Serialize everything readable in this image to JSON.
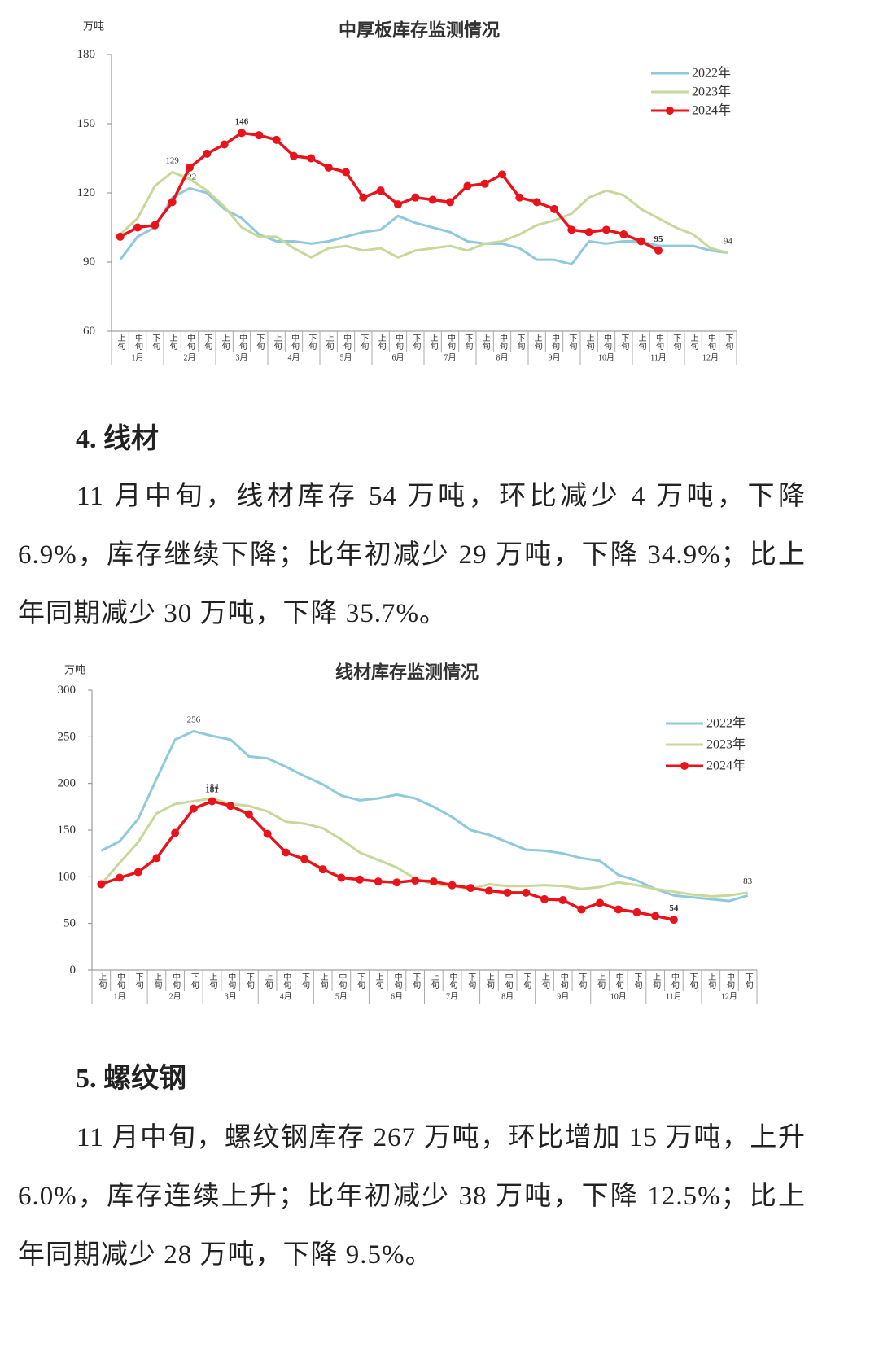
{
  "chart_data": [
    {
      "type": "line",
      "title": "中厚板库存监测情况",
      "y_unit": "万吨",
      "ylim": [
        60,
        180
      ],
      "yticks": [
        60,
        90,
        120,
        150,
        180
      ],
      "categories": [
        "上旬",
        "中旬",
        "下旬",
        "上旬",
        "中旬",
        "下旬",
        "上旬",
        "中旬",
        "下旬",
        "上旬",
        "中旬",
        "下旬",
        "上旬",
        "中旬",
        "下旬",
        "上旬",
        "中旬",
        "下旬",
        "上旬",
        "中旬",
        "下旬",
        "上旬",
        "中旬",
        "下旬",
        "上旬",
        "中旬",
        "下旬",
        "上旬",
        "中旬",
        "下旬",
        "上旬",
        "中旬",
        "下旬",
        "上旬",
        "中旬",
        "下旬"
      ],
      "groups": [
        "1月",
        "2月",
        "3月",
        "4月",
        "5月",
        "6月",
        "7月",
        "8月",
        "9月",
        "10月",
        "11月",
        "12月"
      ],
      "legend": "upper right",
      "series": [
        {
          "name": "2022年",
          "color": "#8fc9da",
          "labeled": [
            4
          ],
          "values": [
            91,
            101,
            105,
            118,
            122,
            120,
            113,
            109,
            102,
            99,
            99,
            98,
            99,
            101,
            103,
            104,
            110,
            107,
            105,
            103,
            99,
            98,
            98,
            96,
            91,
            91,
            89,
            99,
            98,
            99,
            99,
            97,
            97,
            97,
            95,
            94
          ]
        },
        {
          "name": "2023年",
          "color": "#c6d89a",
          "labeled": [
            3,
            35
          ],
          "values": [
            102,
            109,
            123,
            129,
            126,
            121,
            114,
            105,
            101,
            101,
            96,
            92,
            96,
            97,
            95,
            96,
            92,
            95,
            96,
            97,
            95,
            98,
            99,
            102,
            106,
            108,
            111,
            118,
            121,
            119,
            113,
            109,
            105,
            102,
            96,
            94
          ]
        },
        {
          "name": "2024年",
          "color": "#e8141c",
          "markers": true,
          "labeled": [
            7,
            31
          ],
          "values": [
            101,
            105,
            106,
            116,
            131,
            137,
            141,
            146,
            145,
            143,
            136,
            135,
            131,
            129,
            118,
            121,
            115,
            118,
            117,
            116,
            123,
            124,
            128,
            118,
            116,
            113,
            104,
            103,
            104,
            102,
            99,
            95,
            null,
            null,
            null,
            null
          ]
        }
      ]
    },
    {
      "type": "line",
      "title": "线材库存监测情况",
      "y_unit": "万吨",
      "ylim": [
        0,
        300
      ],
      "yticks": [
        0,
        50,
        100,
        150,
        200,
        250,
        300
      ],
      "categories": [
        "上旬",
        "中旬",
        "下旬",
        "上旬",
        "中旬",
        "下旬",
        "上旬",
        "中旬",
        "下旬",
        "上旬",
        "中旬",
        "下旬",
        "上旬",
        "中旬",
        "下旬",
        "上旬",
        "中旬",
        "下旬",
        "上旬",
        "中旬",
        "下旬",
        "上旬",
        "中旬",
        "下旬",
        "上旬",
        "中旬",
        "下旬",
        "上旬",
        "中旬",
        "下旬",
        "上旬",
        "中旬",
        "下旬",
        "上旬",
        "中旬",
        "下旬"
      ],
      "groups": [
        "1月",
        "2月",
        "3月",
        "4月",
        "5月",
        "6月",
        "7月",
        "8月",
        "9月",
        "10月",
        "11月",
        "12月"
      ],
      "legend": "upper right",
      "series": [
        {
          "name": "2022年",
          "color": "#8fc9da",
          "labeled": [
            5
          ],
          "values": [
            128,
            138,
            162,
            205,
            247,
            256,
            251,
            247,
            229,
            227,
            218,
            208,
            199,
            187,
            182,
            184,
            188,
            184,
            175,
            164,
            150,
            145,
            137,
            129,
            128,
            125,
            120,
            117,
            102,
            96,
            87,
            80,
            78,
            76,
            74,
            80
          ]
        },
        {
          "name": "2023年",
          "color": "#c6d89a",
          "labeled": [
            6,
            35
          ],
          "values": [
            92,
            115,
            137,
            168,
            178,
            181,
            184,
            178,
            176,
            170,
            159,
            157,
            152,
            140,
            126,
            118,
            110,
            98,
            92,
            90,
            87,
            92,
            90,
            90,
            91,
            90,
            87,
            89,
            94,
            91,
            87,
            84,
            81,
            79,
            80,
            83
          ]
        },
        {
          "name": "2024年",
          "color": "#e8141c",
          "markers": true,
          "labeled": [
            6,
            31
          ],
          "values": [
            92,
            99,
            105,
            120,
            147,
            173,
            181,
            176,
            167,
            146,
            126,
            119,
            108,
            99,
            97,
            95,
            94,
            96,
            95,
            91,
            88,
            85,
            83,
            83,
            76,
            75,
            65,
            72,
            65,
            62,
            58,
            54,
            null,
            null,
            null,
            null
          ]
        }
      ]
    }
  ],
  "sections": [
    {
      "heading": "4. 线材",
      "paragraph": "11 月中旬，线材库存 54 万吨，环比减少 4 万吨，下降 6.9%，库存继续下降；比年初减少 29 万吨，下降 34.9%；比上年同期减少 30 万吨，下降 35.7%。"
    },
    {
      "heading": "5. 螺纹钢",
      "paragraph": "11 月中旬，螺纹钢库存 267 万吨，环比增加 15 万吨，上升 6.0%，库存连续上升；比年初减少 38 万吨，下降 12.5%；比上年同期减少 28 万吨，下降 9.5%。"
    }
  ]
}
